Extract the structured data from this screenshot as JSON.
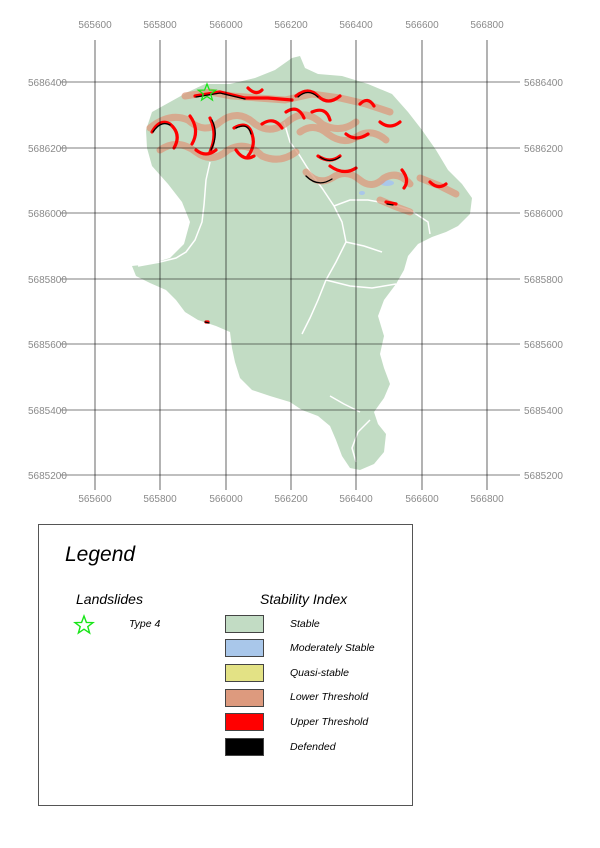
{
  "map": {
    "x_ticks": [
      "565600",
      "565800",
      "566000",
      "566200",
      "566400",
      "566600",
      "566800"
    ],
    "y_ticks": [
      "5686400",
      "5686200",
      "5686000",
      "5685800",
      "5685600",
      "5685400",
      "5685200"
    ],
    "colors": {
      "stable": "#c2dcc4",
      "moderately_stable": "#a9c7ea",
      "quasi_stable": "#e3e285",
      "lower_threshold": "#dd9a7e",
      "upper_threshold": "#ff0000",
      "defended": "#000000",
      "grid": "#000000",
      "landslide": "#19e619"
    }
  },
  "legend": {
    "title": "Legend",
    "landslides": {
      "title": "Landslides",
      "items": [
        {
          "icon": "star-icon",
          "label": "Type 4"
        }
      ]
    },
    "stability_index": {
      "title": "Stability Index",
      "items": [
        {
          "label": "Stable",
          "color": "#c2dcc4"
        },
        {
          "label": "Moderately Stable",
          "color": "#a9c7ea"
        },
        {
          "label": "Quasi-stable",
          "color": "#e3e285"
        },
        {
          "label": "Lower Threshold",
          "color": "#dd9a7e"
        },
        {
          "label": "Upper Threshold",
          "color": "#ff0000"
        },
        {
          "label": "Defended",
          "color": "#000000"
        }
      ]
    }
  }
}
